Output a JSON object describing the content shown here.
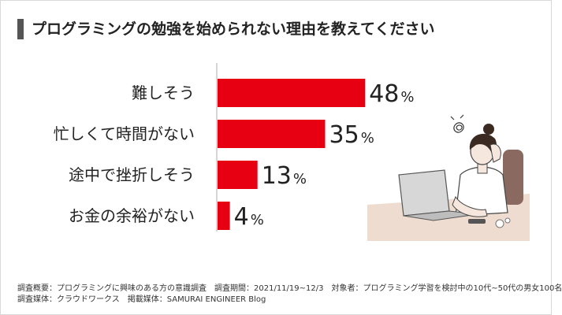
{
  "title": "プログラミングの勉強を始められない理由を教えてください",
  "chart_data": {
    "type": "bar",
    "orientation": "horizontal",
    "categories": [
      "難しそう",
      "忙しくて時間がない",
      "途中で挫折しそう",
      "お金の余裕がない"
    ],
    "values": [
      48,
      35,
      13,
      4
    ],
    "value_suffix": "%",
    "xlim": [
      0,
      100
    ],
    "grid": false,
    "bar_color": "#e60012"
  },
  "footer": {
    "line1": {
      "survey_summary": "調査概要：プログラミングに興味のある方の意識調査",
      "survey_period": "調査期間：2021/11/19~12/3",
      "respondents": "対象者：プログラミング学習を検討中の10代~50代の男女100名"
    },
    "line2": {
      "survey_medium": "調査媒体：クラウドワークス",
      "published_in": "掲載媒体：SAMURAI ENGINEER Blog"
    }
  },
  "illustration": {
    "icon": "worried-woman-at-laptop-illustration",
    "colors": {
      "desk": "#eddccf",
      "hair": "#3a2a22",
      "skin": "#f6e7de",
      "chair": "#8a6a60",
      "laptop": "#d7d7d7"
    }
  }
}
